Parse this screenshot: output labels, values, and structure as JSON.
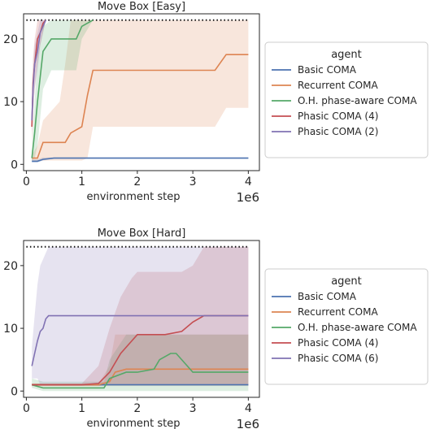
{
  "chart_data": [
    {
      "type": "line",
      "title": "Move Box [Easy]",
      "xlabel": "environment step",
      "ylabel": "",
      "x_scale_label": "1e6",
      "xlim": [
        -0.05,
        4.2
      ],
      "ylim": [
        -1,
        24
      ],
      "xticks": [
        0,
        1,
        2,
        3,
        4
      ],
      "yticks": [
        0,
        10,
        20
      ],
      "grid": false,
      "reference_line": 23,
      "legend": {
        "title": "agent",
        "placement": "right-outside",
        "entries": [
          "Basic COMA",
          "Recurrent COMA",
          "O.H. phase-aware COMA",
          "Phasic COMA (4)",
          "Phasic COMA (2)"
        ]
      },
      "series": [
        {
          "name": "Basic COMA",
          "color": "#4c72b0",
          "x": [
            0.1,
            0.2,
            0.3,
            0.5,
            1.0,
            2.0,
            3.0,
            4.0
          ],
          "y": [
            0.5,
            0.5,
            0.8,
            1,
            1,
            1,
            1,
            1
          ],
          "lower": [
            0.3,
            0.3,
            0.6,
            0.9,
            0.9,
            0.9,
            0.9,
            0.9
          ],
          "upper": [
            0.8,
            0.8,
            1.1,
            1.1,
            1.1,
            1.1,
            1.1,
            1.1
          ]
        },
        {
          "name": "Recurrent COMA",
          "color": "#dd8452",
          "x": [
            0.1,
            0.2,
            0.3,
            0.6,
            0.7,
            0.8,
            1.0,
            1.1,
            1.2,
            2.0,
            3.4,
            3.6,
            4.0
          ],
          "y": [
            1,
            1,
            3.5,
            3.5,
            3.5,
            5,
            6,
            11,
            15,
            15,
            15,
            17.5,
            17.5
          ],
          "lower": [
            0.6,
            0.6,
            0.6,
            0.6,
            0.6,
            0.6,
            0.6,
            1,
            6,
            6,
            6,
            9,
            9
          ],
          "upper": [
            1.5,
            3,
            7,
            10,
            16,
            23,
            23,
            23,
            23,
            23,
            23,
            23,
            23
          ]
        },
        {
          "name": "O.H. phase-aware COMA",
          "color": "#55a868",
          "x": [
            0.1,
            0.15,
            0.2,
            0.3,
            0.45,
            0.6,
            0.9,
            1.0,
            1.2
          ],
          "y": [
            1,
            5,
            10,
            18,
            20,
            20,
            20,
            22,
            23
          ],
          "lower": [
            0.6,
            1,
            3,
            12,
            15,
            15,
            15,
            20,
            23
          ],
          "upper": [
            2,
            10,
            17,
            22,
            23,
            23,
            23,
            23,
            23
          ]
        },
        {
          "name": "Phasic COMA (4)",
          "color": "#c44e52",
          "x": [
            0.1,
            0.12,
            0.15,
            0.2,
            0.25,
            0.3,
            0.35
          ],
          "y": [
            6,
            13,
            16,
            20,
            21,
            22.5,
            23
          ],
          "lower": [
            3,
            8,
            12,
            16,
            19,
            21,
            23
          ],
          "upper": [
            10,
            17,
            20,
            23,
            23,
            23,
            23
          ]
        },
        {
          "name": "Phasic COMA (2)",
          "color": "#8172b3",
          "x": [
            0.1,
            0.12,
            0.15,
            0.2,
            0.25,
            0.3,
            0.35
          ],
          "y": [
            7,
            12,
            16,
            18,
            21,
            22,
            23
          ],
          "lower": [
            5,
            8,
            12,
            15,
            19,
            21,
            23
          ],
          "upper": [
            10,
            15,
            19,
            21,
            23,
            23,
            23
          ]
        }
      ]
    },
    {
      "type": "line",
      "title": "Move Box [Hard]",
      "xlabel": "environment step",
      "ylabel": "",
      "x_scale_label": "1e6",
      "xlim": [
        -0.05,
        4.2
      ],
      "ylim": [
        -1,
        24
      ],
      "xticks": [
        0,
        1,
        2,
        3,
        4
      ],
      "yticks": [
        0,
        10,
        20
      ],
      "grid": false,
      "reference_line": 23,
      "legend": {
        "title": "agent",
        "placement": "right-outside",
        "entries": [
          "Basic COMA",
          "Recurrent COMA",
          "O.H. phase-aware COMA",
          "Phasic COMA (4)",
          "Phasic COMA (6)"
        ]
      },
      "series": [
        {
          "name": "Basic COMA",
          "color": "#4c72b0",
          "x": [
            0.1,
            0.5,
            1.0,
            1.5,
            2.0,
            2.5,
            3.0,
            3.5,
            4.0
          ],
          "y": [
            1,
            1,
            1,
            1,
            1,
            1,
            1,
            1,
            1
          ],
          "lower": [
            0.9,
            0.9,
            0.9,
            0.9,
            0.9,
            0.9,
            0.9,
            0.9,
            0.9
          ],
          "upper": [
            1.1,
            1.1,
            1.1,
            1.1,
            1.1,
            1.1,
            1.1,
            1.1,
            1.1
          ]
        },
        {
          "name": "Recurrent COMA",
          "color": "#dd8452",
          "x": [
            0.1,
            0.5,
            1.0,
            1.3,
            1.5,
            1.6,
            1.8,
            2.0,
            2.5,
            3.0,
            3.5,
            4.0
          ],
          "y": [
            1,
            1,
            1,
            1,
            1.5,
            3,
            3.5,
            3.5,
            3.5,
            3.5,
            3.5,
            3.5
          ],
          "lower": [
            0.8,
            0.8,
            0.8,
            0.8,
            0.8,
            0.8,
            0.8,
            0.8,
            0.8,
            0.8,
            0.8,
            0.8
          ],
          "upper": [
            1.2,
            1.2,
            1.2,
            1.2,
            4,
            9,
            9,
            9,
            9,
            9,
            9,
            9
          ]
        },
        {
          "name": "O.H. phase-aware COMA",
          "color": "#55a868",
          "x": [
            0.1,
            0.3,
            0.5,
            1.0,
            1.4,
            1.5,
            1.8,
            2.0,
            2.3,
            2.4,
            2.6,
            2.7,
            2.9,
            3.0,
            3.5,
            4.0
          ],
          "y": [
            1,
            0.5,
            0.5,
            0.5,
            0.5,
            2,
            3,
            3,
            3.5,
            5,
            6,
            6,
            4,
            3,
            3,
            3
          ],
          "lower": [
            0.5,
            0,
            0,
            0,
            0,
            0,
            0,
            0,
            0,
            0,
            0,
            0,
            0,
            0,
            0,
            0
          ],
          "upper": [
            2,
            1.5,
            1.5,
            1.5,
            1.5,
            5,
            9,
            9,
            9,
            9,
            9,
            9,
            9,
            9,
            9,
            9
          ]
        },
        {
          "name": "Phasic COMA (4)",
          "color": "#c44e52",
          "x": [
            0.1,
            0.5,
            1.0,
            1.3,
            1.5,
            1.7,
            1.9,
            2.0,
            2.5,
            2.8,
            3.0,
            3.2,
            3.5,
            4.0
          ],
          "y": [
            1,
            1,
            1,
            1.2,
            3,
            6,
            8,
            9,
            9,
            9.5,
            11,
            12,
            12,
            12
          ],
          "lower": [
            0.8,
            0.8,
            0.8,
            0.8,
            1,
            1,
            1,
            1,
            1,
            1,
            1,
            1,
            1,
            1
          ],
          "upper": [
            1.2,
            1.2,
            1.2,
            4,
            10,
            15,
            18,
            19,
            19,
            19,
            20,
            23,
            23,
            23
          ]
        },
        {
          "name": "Phasic COMA (6)",
          "color": "#8172b3",
          "x": [
            0.1,
            0.15,
            0.2,
            0.25,
            0.3,
            0.35,
            0.4,
            1.0,
            2.0,
            3.0,
            4.0
          ],
          "y": [
            4,
            6,
            8,
            9.5,
            10,
            11.5,
            12,
            12,
            12,
            12,
            12
          ],
          "lower": [
            2,
            2,
            2,
            1,
            1,
            1,
            1,
            1,
            1,
            1,
            1
          ],
          "upper": [
            7,
            12,
            17,
            20,
            21,
            22,
            23,
            23,
            23,
            23,
            23
          ]
        }
      ]
    }
  ]
}
